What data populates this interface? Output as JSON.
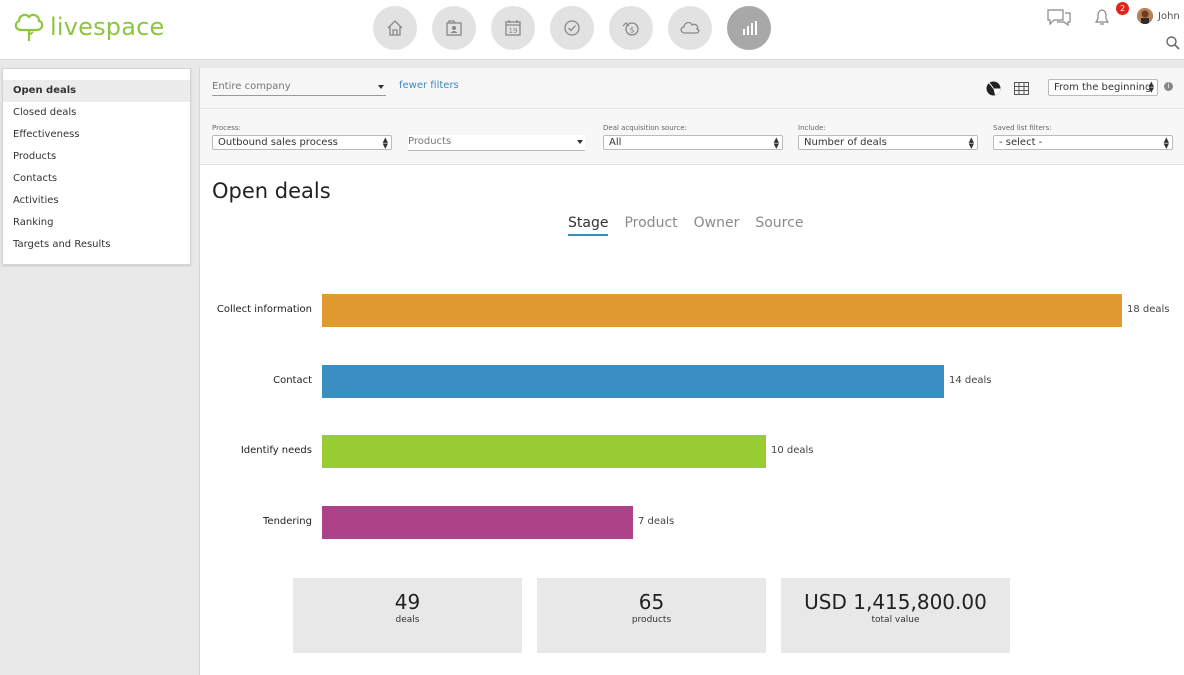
{
  "app": {
    "name": "livespace"
  },
  "header": {
    "nav": [
      {
        "icon": "home-icon"
      },
      {
        "icon": "contacts-icon"
      },
      {
        "icon": "calendar-icon",
        "text": "19"
      },
      {
        "icon": "task-check-icon"
      },
      {
        "icon": "deals-money-icon"
      },
      {
        "icon": "cloud-icon"
      },
      {
        "icon": "reports-chart-icon",
        "active": true
      }
    ],
    "notifications_count": "2",
    "user_name": "John"
  },
  "sidebar": {
    "items": [
      {
        "label": "Open deals",
        "active": true
      },
      {
        "label": "Closed deals"
      },
      {
        "label": "Effectiveness"
      },
      {
        "label": "Products"
      },
      {
        "label": "Contacts"
      },
      {
        "label": "Activities"
      },
      {
        "label": "Ranking"
      },
      {
        "label": "Targets and Results"
      }
    ]
  },
  "filters": {
    "scope_value": "Entire company",
    "fewer_filters": "fewer filters",
    "range_value": "From the beginning",
    "process_label": "Process:",
    "process_value": "Outbound sales process",
    "products_value": "Products",
    "source_label": "Deal acquisition source:",
    "source_value": "All",
    "include_label": "Include:",
    "include_value": "Number of deals",
    "saved_label": "Saved list filters:",
    "saved_value": "- select -"
  },
  "main": {
    "title": "Open deals",
    "tabs": [
      "Stage",
      "Product",
      "Owner",
      "Source"
    ]
  },
  "chart_data": {
    "type": "bar",
    "orientation": "horizontal",
    "categories": [
      "Collect information",
      "Contact",
      "Identify needs",
      "Tendering"
    ],
    "values": [
      18,
      14,
      10,
      7
    ],
    "value_labels": [
      "18 deals",
      "14 deals",
      "10 deals",
      "7 deals"
    ],
    "colors": [
      "#e09a2f",
      "#3a8ec2",
      "#99cc33",
      "#ad4288"
    ],
    "xlim": [
      0,
      18
    ]
  },
  "summary": [
    {
      "value": "49",
      "label": "deals"
    },
    {
      "value": "65",
      "label": "products"
    },
    {
      "value": "USD 1,415,800.00",
      "label": "total value"
    }
  ]
}
